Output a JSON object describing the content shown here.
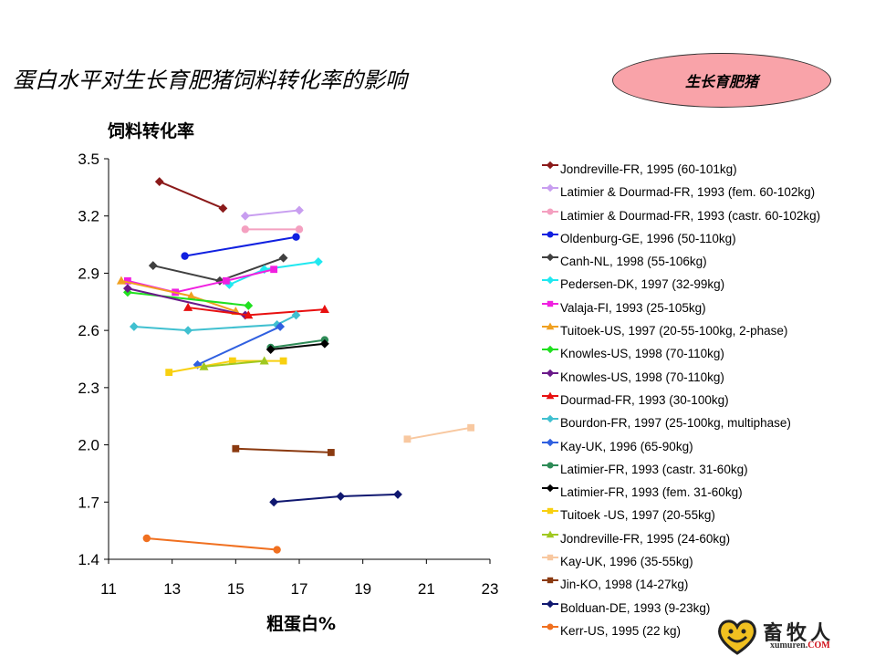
{
  "slide": {
    "title": "蛋白水平对生长育肥猪饲料转化率的影响",
    "badge": "生长育肥猪"
  },
  "logo": {
    "name": "畜牧人",
    "url_main": "xumuren.",
    "url_tld": "COM",
    "icon": "heart-logo-icon"
  },
  "chart_data": {
    "type": "line",
    "title": "",
    "ylabel": "饲料转化率",
    "xlabel": "粗蛋白%",
    "xlim": [
      11,
      23
    ],
    "ylim": [
      1.4,
      3.5
    ],
    "xticks": [
      11,
      13,
      15,
      17,
      19,
      21,
      23
    ],
    "yticks": [
      1.4,
      1.7,
      2.0,
      2.3,
      2.6,
      2.9,
      3.2,
      3.5
    ],
    "xtick_labels": [
      "11",
      "13",
      "15",
      "17",
      "19",
      "21",
      "23"
    ],
    "ytick_labels": [
      "1.4",
      "1.7",
      "2.0",
      "2.3",
      "2.6",
      "2.9",
      "3.2",
      "3.5"
    ],
    "grid": false,
    "legend_position": "right",
    "series": [
      {
        "name": "Jondreville-FR, 1995 (60-101kg)",
        "color": "#8b1a1a",
        "marker": "diamond",
        "points": [
          [
            12.6,
            3.38
          ],
          [
            14.6,
            3.24
          ]
        ]
      },
      {
        "name": "Latimier & Dourmad-FR, 1993 (fem. 60-102kg)",
        "color": "#c89ef0",
        "marker": "diamond",
        "points": [
          [
            15.3,
            3.2
          ],
          [
            17.0,
            3.23
          ]
        ]
      },
      {
        "name": "Latimier & Dourmad-FR, 1993 (castr. 60-102kg)",
        "color": "#f4a0c0",
        "marker": "circle",
        "points": [
          [
            15.3,
            3.13
          ],
          [
            17.0,
            3.13
          ]
        ]
      },
      {
        "name": "Oldenburg-GE, 1996 (50-110kg)",
        "color": "#1020e0",
        "marker": "circle",
        "points": [
          [
            13.4,
            2.99
          ],
          [
            16.9,
            3.09
          ]
        ]
      },
      {
        "name": "Canh-NL, 1998 (55-106kg)",
        "color": "#404040",
        "marker": "diamond",
        "points": [
          [
            12.4,
            2.94
          ],
          [
            14.5,
            2.86
          ],
          [
            16.5,
            2.98
          ]
        ]
      },
      {
        "name": "Pedersen-DK, 1997 (32-99kg)",
        "color": "#20e8f0",
        "marker": "diamond",
        "points": [
          [
            14.8,
            2.84
          ],
          [
            15.9,
            2.92
          ],
          [
            17.6,
            2.96
          ]
        ]
      },
      {
        "name": "Valaja-FI, 1993 (25-105kg)",
        "color": "#f020e0",
        "marker": "square",
        "points": [
          [
            11.6,
            2.86
          ],
          [
            13.1,
            2.8
          ],
          [
            14.7,
            2.86
          ],
          [
            16.2,
            2.92
          ]
        ]
      },
      {
        "name": "Tuitoek-US, 1997 (20-55-100kg, 2-phase)",
        "color": "#f0a020",
        "marker": "triangle",
        "points": [
          [
            11.4,
            2.86
          ],
          [
            13.6,
            2.78
          ],
          [
            15.0,
            2.7
          ]
        ]
      },
      {
        "name": "Knowles-US, 1998 (70-110kg)",
        "color": "#20e020",
        "marker": "diamond",
        "points": [
          [
            11.6,
            2.8
          ],
          [
            15.4,
            2.73
          ]
        ]
      },
      {
        "name": "Knowles-US, 1998 (70-110kg)",
        "color": "#6a1a8a",
        "marker": "diamond",
        "points": [
          [
            11.6,
            2.82
          ],
          [
            15.3,
            2.68
          ]
        ]
      },
      {
        "name": "Dourmad-FR, 1993 (30-100kg)",
        "color": "#e81010",
        "marker": "triangle",
        "points": [
          [
            13.5,
            2.72
          ],
          [
            15.4,
            2.68
          ],
          [
            17.8,
            2.71
          ]
        ]
      },
      {
        "name": "Bourdon-FR, 1997 (25-100kg, multiphase)",
        "color": "#40c0d0",
        "marker": "diamond",
        "points": [
          [
            11.8,
            2.62
          ],
          [
            13.5,
            2.6
          ],
          [
            16.3,
            2.63
          ],
          [
            16.9,
            2.68
          ]
        ]
      },
      {
        "name": "Kay-UK, 1996 (65-90kg)",
        "color": "#3060e0",
        "marker": "diamond",
        "points": [
          [
            13.8,
            2.42
          ],
          [
            16.4,
            2.62
          ]
        ]
      },
      {
        "name": "Latimier-FR, 1993 (castr. 31-60kg)",
        "color": "#2e8b57",
        "marker": "circle",
        "points": [
          [
            16.1,
            2.51
          ],
          [
            17.8,
            2.55
          ]
        ]
      },
      {
        "name": "Latimier-FR, 1993 (fem. 31-60kg)",
        "color": "#000000",
        "marker": "diamond",
        "points": [
          [
            16.1,
            2.5
          ],
          [
            17.8,
            2.53
          ]
        ]
      },
      {
        "name": "Tuitoek -US, 1997 (20-55kg)",
        "color": "#f8d010",
        "marker": "square",
        "points": [
          [
            12.9,
            2.38
          ],
          [
            14.9,
            2.44
          ],
          [
            16.5,
            2.44
          ]
        ]
      },
      {
        "name": "Jondreville-FR, 1995 (24-60kg)",
        "color": "#a0c820",
        "marker": "triangle",
        "points": [
          [
            14.0,
            2.41
          ],
          [
            15.9,
            2.44
          ]
        ]
      },
      {
        "name": "Kay-UK, 1996 (35-55kg)",
        "color": "#f8c8a0",
        "marker": "square",
        "points": [
          [
            20.4,
            2.03
          ],
          [
            22.4,
            2.09
          ]
        ]
      },
      {
        "name": "Jin-KO, 1998 (14-27kg)",
        "color": "#8b3a10",
        "marker": "square",
        "points": [
          [
            15.0,
            1.98
          ],
          [
            18.0,
            1.96
          ]
        ]
      },
      {
        "name": "Bolduan-DE, 1993 (9-23kg)",
        "color": "#101870",
        "marker": "diamond",
        "points": [
          [
            16.2,
            1.7
          ],
          [
            18.3,
            1.73
          ],
          [
            20.1,
            1.74
          ]
        ]
      },
      {
        "name": "Kerr-US, 1995 (22 kg)",
        "color": "#f07020",
        "marker": "circle",
        "points": [
          [
            12.2,
            1.51
          ],
          [
            16.3,
            1.45
          ]
        ]
      }
    ]
  }
}
